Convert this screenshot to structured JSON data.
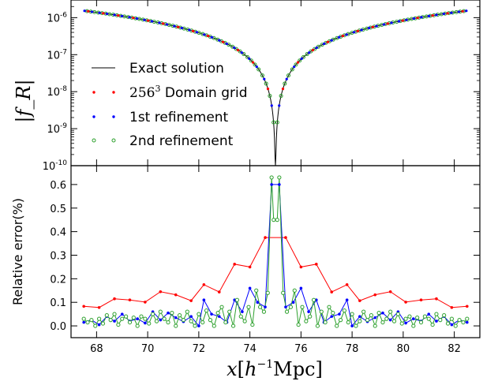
{
  "chart_data": [
    {
      "type": "line",
      "ylabel": "|f_R|",
      "yscale": "log",
      "ylim": [
        1e-10,
        3e-06
      ],
      "xlim": [
        67.0,
        83.0
      ],
      "y_ticks": [
        {
          "value": 1e-10,
          "base": "10",
          "exp": "-10"
        },
        {
          "value": 1e-09,
          "base": "10",
          "exp": "-9"
        },
        {
          "value": 1e-08,
          "base": "10",
          "exp": "-8"
        },
        {
          "value": 1e-07,
          "base": "10",
          "exp": "-7"
        },
        {
          "value": 1e-06,
          "base": "10",
          "exp": "-6"
        }
      ],
      "legend": {
        "placement": "center-left",
        "entries": [
          {
            "label": "Exact solution",
            "color": "#000000",
            "marker": "line"
          },
          {
            "label": "256³ Domain grid",
            "label_math": "256",
            "label_sup": "3",
            "label_rest": " Domain grid",
            "color": "#ff0000",
            "marker": "dot"
          },
          {
            "label": "1st refinement",
            "color": "#0000ff",
            "marker": "dot"
          },
          {
            "label": "2nd refinement",
            "color": "#2ca02c",
            "marker": "circle"
          }
        ]
      },
      "series": [
        {
          "name": "Exact solution",
          "color": "#000000",
          "profile": {
            "center": 75.0,
            "amplitude": 6e-07,
            "floor": 1e-10
          }
        },
        {
          "name": "256³ Domain grid",
          "color": "#ff0000",
          "spacing": 0.586
        },
        {
          "name": "1st refinement",
          "color": "#0000ff",
          "spacing": 0.293
        },
        {
          "name": "2nd refinement",
          "color": "#2ca02c",
          "spacing": 0.146
        }
      ]
    },
    {
      "type": "line",
      "xlabel": "x[h⁻¹Mpc]",
      "xlabel_main": "x",
      "xlabel_open": "[",
      "xlabel_h": "h",
      "xlabel_exp": "−1",
      "xlabel_unit": "Mpc]",
      "ylabel": "Relative error(%)",
      "xlim": [
        67.0,
        83.0
      ],
      "ylim": [
        -0.05,
        0.68
      ],
      "x_ticks": [
        68,
        70,
        72,
        74,
        76,
        78,
        80,
        82
      ],
      "y_ticks": [
        0.0,
        0.1,
        0.2,
        0.3,
        0.4,
        0.5,
        0.6
      ],
      "x_tick_labels": [
        "68",
        "70",
        "72",
        "74",
        "76",
        "78",
        "80",
        "82"
      ],
      "y_tick_labels": [
        "0.0",
        "0.1",
        "0.2",
        "0.3",
        "0.4",
        "0.5",
        "0.6"
      ],
      "series": [
        {
          "name": "256³ Domain grid",
          "color": "#ff0000",
          "x": [
            67.5,
            68.1,
            68.7,
            69.3,
            69.9,
            70.5,
            71.1,
            71.7,
            72.2,
            72.8,
            73.4,
            74.0,
            74.6,
            75.4,
            76.0,
            76.6,
            77.2,
            77.8,
            78.3,
            78.9,
            79.5,
            80.1,
            80.7,
            81.3,
            81.9,
            82.5
          ],
          "values": [
            0.083,
            0.078,
            0.115,
            0.11,
            0.101,
            0.145,
            0.132,
            0.107,
            0.175,
            0.144,
            0.262,
            0.25,
            0.375,
            0.375,
            0.25,
            0.262,
            0.144,
            0.175,
            0.107,
            0.132,
            0.145,
            0.101,
            0.11,
            0.115,
            0.078,
            0.083
          ]
        },
        {
          "name": "1st refinement",
          "color": "#0000ff",
          "x": [
            67.5,
            67.8,
            68.1,
            68.4,
            68.7,
            69.0,
            69.3,
            69.6,
            69.9,
            70.2,
            70.5,
            70.8,
            71.1,
            71.4,
            71.7,
            72.0,
            72.2,
            72.5,
            72.8,
            73.1,
            73.4,
            73.7,
            74.0,
            74.3,
            74.6,
            74.85,
            75.15,
            75.4,
            75.7,
            76.0,
            76.3,
            76.6,
            76.9,
            77.2,
            77.5,
            77.8,
            78.0,
            78.3,
            78.6,
            78.9,
            79.2,
            79.5,
            79.8,
            80.1,
            80.4,
            80.7,
            81.0,
            81.3,
            81.6,
            81.9,
            82.2,
            82.5
          ],
          "values": [
            0.015,
            0.025,
            0.005,
            0.04,
            0.02,
            0.05,
            0.02,
            0.03,
            0.012,
            0.06,
            0.025,
            0.055,
            0.035,
            0.018,
            0.04,
            0.0,
            0.11,
            0.05,
            0.04,
            0.015,
            0.11,
            0.06,
            0.16,
            0.1,
            0.08,
            0.6,
            0.6,
            0.08,
            0.1,
            0.16,
            0.06,
            0.11,
            0.015,
            0.04,
            0.05,
            0.11,
            0.0,
            0.04,
            0.018,
            0.035,
            0.055,
            0.025,
            0.06,
            0.012,
            0.03,
            0.02,
            0.05,
            0.02,
            0.04,
            0.005,
            0.025,
            0.015
          ]
        },
        {
          "name": "2nd refinement",
          "color": "#2ca02c",
          "x": [
            67.5,
            67.65,
            67.8,
            67.95,
            68.1,
            68.25,
            68.4,
            68.55,
            68.7,
            68.85,
            69.0,
            69.15,
            69.3,
            69.45,
            69.6,
            69.75,
            69.9,
            70.05,
            70.2,
            70.35,
            70.5,
            70.65,
            70.8,
            70.95,
            71.1,
            71.25,
            71.4,
            71.55,
            71.7,
            71.85,
            72.0,
            72.15,
            72.3,
            72.45,
            72.6,
            72.75,
            72.9,
            73.05,
            73.2,
            73.35,
            73.5,
            73.65,
            73.8,
            73.95,
            74.1,
            74.25,
            74.4,
            74.55,
            74.7,
            74.85,
            74.93,
            75.07,
            75.15,
            75.3,
            75.45,
            75.6,
            75.75,
            75.9,
            76.05,
            76.2,
            76.35,
            76.5,
            76.65,
            76.8,
            76.95,
            77.1,
            77.25,
            77.4,
            77.55,
            77.7,
            77.85,
            78.0,
            78.15,
            78.3,
            78.45,
            78.6,
            78.75,
            78.9,
            79.05,
            79.2,
            79.35,
            79.5,
            79.65,
            79.8,
            79.95,
            80.1,
            80.25,
            80.4,
            80.55,
            80.7,
            80.85,
            81.0,
            81.15,
            81.3,
            81.45,
            81.6,
            81.75,
            81.9,
            82.05,
            82.2,
            82.35,
            82.5
          ],
          "values": [
            0.03,
            0.015,
            0.025,
            0.0,
            0.03,
            0.01,
            0.045,
            0.025,
            0.05,
            0.005,
            0.03,
            0.04,
            0.015,
            0.035,
            0.0,
            0.04,
            0.03,
            0.01,
            0.05,
            0.02,
            0.06,
            0.03,
            0.015,
            0.055,
            0.0,
            0.045,
            0.025,
            0.06,
            0.02,
            0.0,
            0.05,
            0.015,
            0.065,
            0.025,
            0.0,
            0.055,
            0.08,
            0.015,
            0.06,
            0.0,
            0.11,
            0.04,
            0.02,
            0.08,
            0.005,
            0.15,
            0.08,
            0.06,
            0.14,
            0.63,
            0.45,
            0.45,
            0.63,
            0.14,
            0.06,
            0.08,
            0.15,
            0.005,
            0.08,
            0.02,
            0.04,
            0.11,
            0.0,
            0.06,
            0.015,
            0.08,
            0.055,
            0.0,
            0.025,
            0.065,
            0.015,
            0.05,
            0.0,
            0.02,
            0.06,
            0.025,
            0.045,
            0.0,
            0.055,
            0.015,
            0.03,
            0.06,
            0.02,
            0.05,
            0.01,
            0.03,
            0.04,
            0.0,
            0.035,
            0.015,
            0.04,
            0.03,
            0.005,
            0.05,
            0.025,
            0.045,
            0.01,
            0.03,
            0.0,
            0.025,
            0.015,
            0.03
          ]
        }
      ]
    }
  ]
}
